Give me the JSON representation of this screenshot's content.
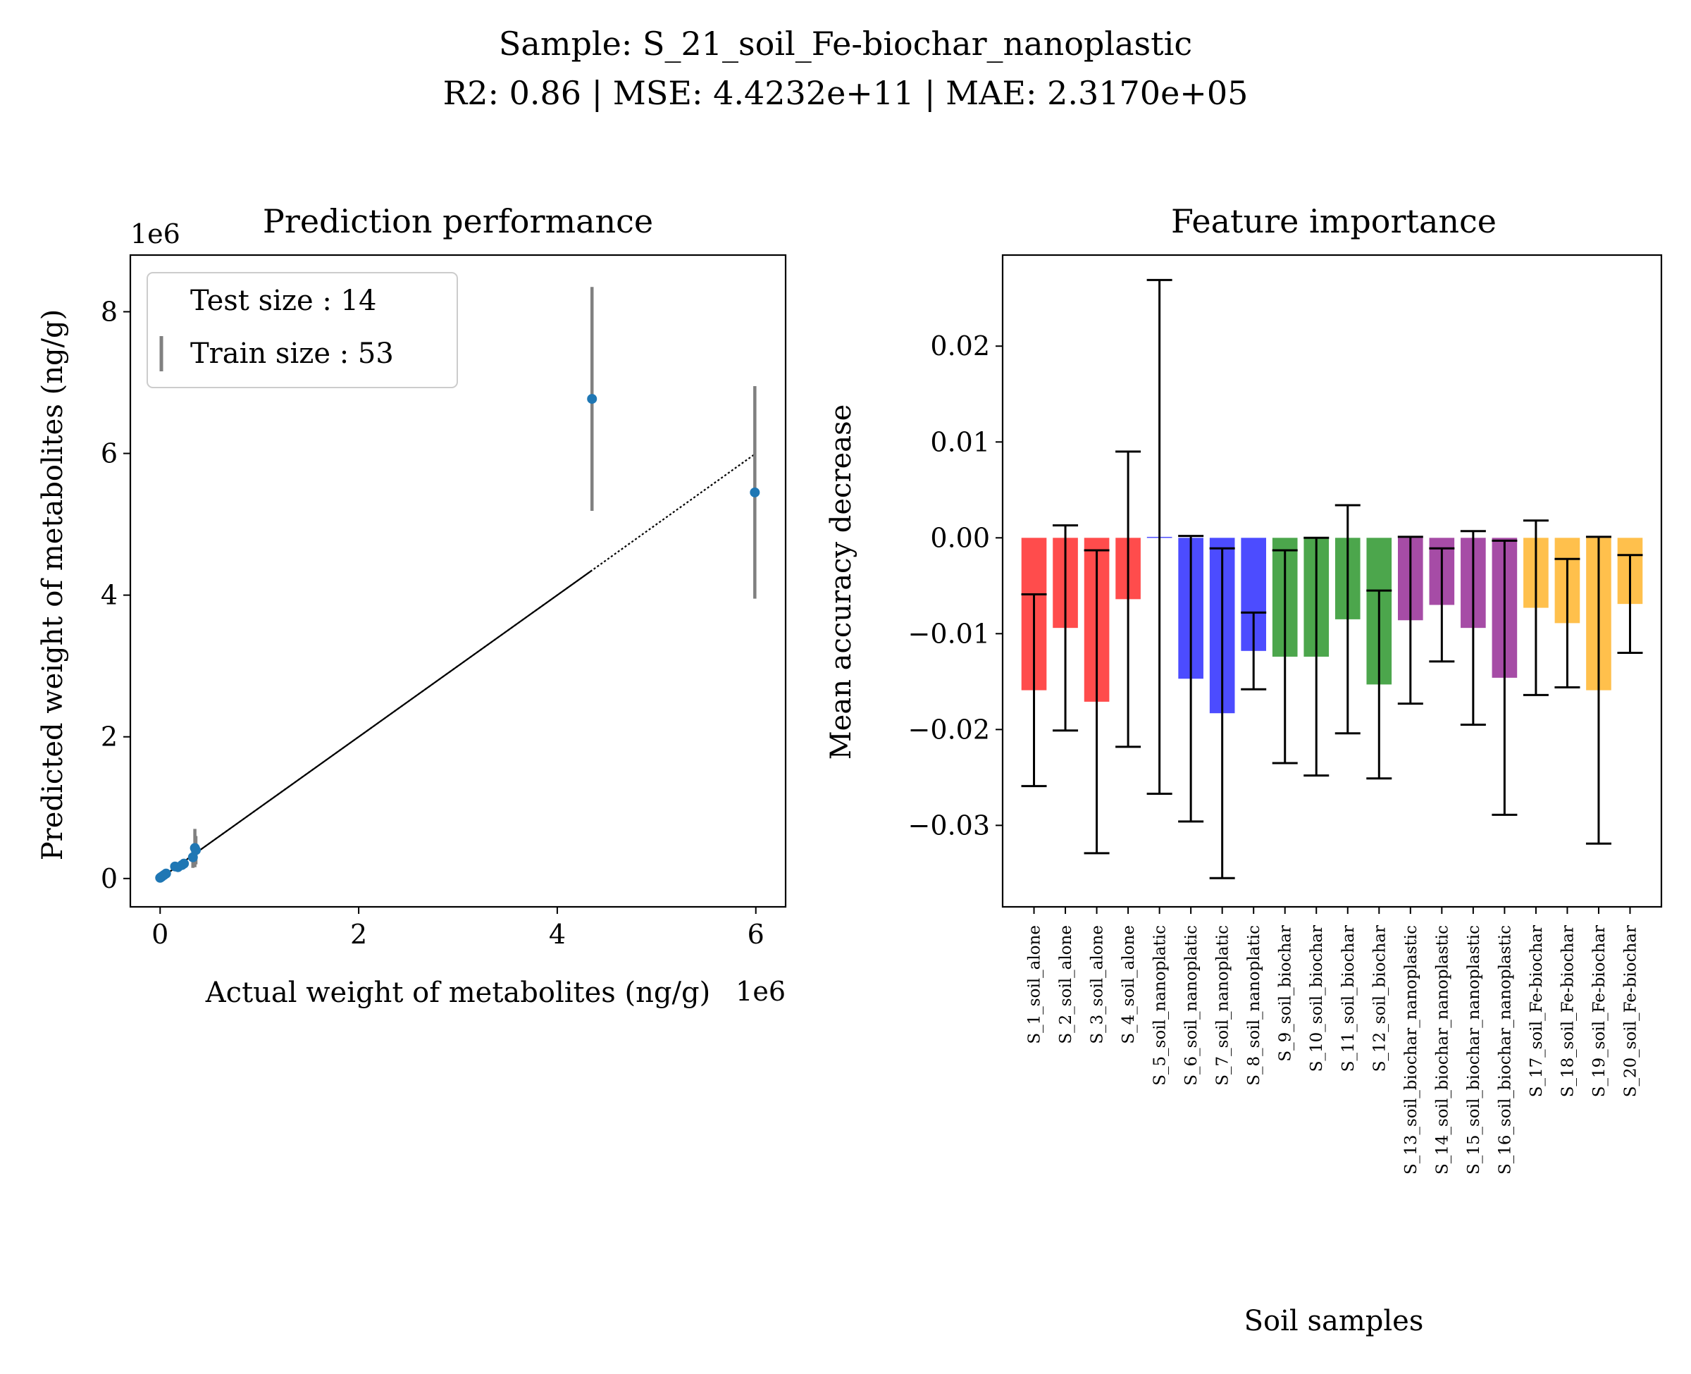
{
  "suptitle": {
    "line1": "Sample: S_21_soil_Fe-biochar_nanoplastic",
    "line2": "R2: 0.86 | MSE: 4.4232e+11 | MAE: 2.3170e+05"
  },
  "chart_data": [
    {
      "type": "scatter",
      "title": "Prediction performance",
      "xlabel": "Actual weight of metabolites (ng/g)",
      "ylabel": "Predicted weight of metabolites (ng/g)",
      "x_multiplier": "1e6",
      "y_multiplier": "1e6",
      "xlim": [
        -0.3,
        6.3
      ],
      "ylim": [
        -0.4,
        8.8
      ],
      "xticks": [
        0,
        2,
        4,
        6
      ],
      "yticks": [
        0,
        2,
        4,
        6,
        8
      ],
      "legend": {
        "placement": "upper-left",
        "entries": [
          "Test size : 14",
          "Train size : 53"
        ]
      },
      "reference_line": {
        "x": [
          0,
          6
        ],
        "y": [
          0,
          6
        ]
      },
      "points": [
        {
          "x": 0.0,
          "y": 0.01,
          "err": 0.02
        },
        {
          "x": 0.01,
          "y": 0.02,
          "err": 0.02
        },
        {
          "x": 0.02,
          "y": 0.03,
          "err": 0.02
        },
        {
          "x": 0.04,
          "y": 0.05,
          "err": 0.03
        },
        {
          "x": 0.06,
          "y": 0.07,
          "err": 0.03
        },
        {
          "x": 0.15,
          "y": 0.17,
          "err": 0.04
        },
        {
          "x": 0.18,
          "y": 0.16,
          "err": 0.04
        },
        {
          "x": 0.22,
          "y": 0.19,
          "err": 0.05
        },
        {
          "x": 0.24,
          "y": 0.21,
          "err": 0.05
        },
        {
          "x": 0.33,
          "y": 0.3,
          "err": 0.15
        },
        {
          "x": 0.35,
          "y": 0.43,
          "err": 0.27
        },
        {
          "x": 0.36,
          "y": 0.4,
          "err": 0.2
        },
        {
          "x": 4.35,
          "y": 6.77,
          "err": 1.58
        },
        {
          "x": 5.99,
          "y": 5.45,
          "err": 1.5
        }
      ]
    },
    {
      "type": "bar",
      "title": "Feature importance",
      "xlabel": "Soil samples",
      "ylabel": "Mean accuracy decrease",
      "ylim": [
        -0.0385,
        0.0295
      ],
      "yticks": [
        0.02,
        0.01,
        0.0,
        -0.01,
        -0.02,
        -0.03
      ],
      "ytick_labels": [
        "0.02",
        "0.01",
        "0.00",
        "−0.01",
        "−0.02",
        "−0.03"
      ],
      "categories": [
        "S_1_soil_alone",
        "S_2_soil_alone",
        "S_3_soil_alone",
        "S_4_soil_alone",
        "S_5_soil_nanoplatic",
        "S_6_soil_nanoplatic",
        "S_7_soil_nanoplatic",
        "S_8_soil_nanoplatic",
        "S_9_soil_biochar",
        "S_10_soil_biochar",
        "S_11_soil_biochar",
        "S_12_soil_biochar",
        "S_13_soil_biochar_nanoplastic",
        "S_14_soil_biochar_nanoplastic",
        "S_15_soil_biochar_nanoplastic",
        "S_16_soil_biochar_nanoplastic",
        "S_17_soil_Fe-biochar",
        "S_18_soil_Fe-biochar",
        "S_19_soil_Fe-biochar",
        "S_20_soil_Fe-biochar"
      ],
      "values": [
        -0.0159,
        -0.0094,
        -0.0171,
        -0.0064,
        0.0001,
        -0.0147,
        -0.0183,
        -0.0118,
        -0.0124,
        -0.0124,
        -0.0085,
        -0.0153,
        -0.0086,
        -0.007,
        -0.0094,
        -0.0146,
        -0.0073,
        -0.0089,
        -0.0159,
        -0.0069
      ],
      "errors": [
        0.01,
        0.0107,
        0.0158,
        0.0154,
        0.0268,
        0.0149,
        0.0172,
        0.004,
        0.0111,
        0.0124,
        0.0119,
        0.0098,
        0.0087,
        0.0059,
        0.0101,
        0.0143,
        0.0091,
        0.0067,
        0.016,
        0.0051
      ],
      "colors": [
        "#ff0000",
        "#ff0000",
        "#ff0000",
        "#ff0000",
        "#0000ff",
        "#0000ff",
        "#0000ff",
        "#0000ff",
        "#008000",
        "#008000",
        "#008000",
        "#008000",
        "#800080",
        "#800080",
        "#800080",
        "#800080",
        "#ffa500",
        "#ffa500",
        "#ffa500",
        "#ffa500"
      ],
      "bar_alpha": 0.7
    }
  ]
}
